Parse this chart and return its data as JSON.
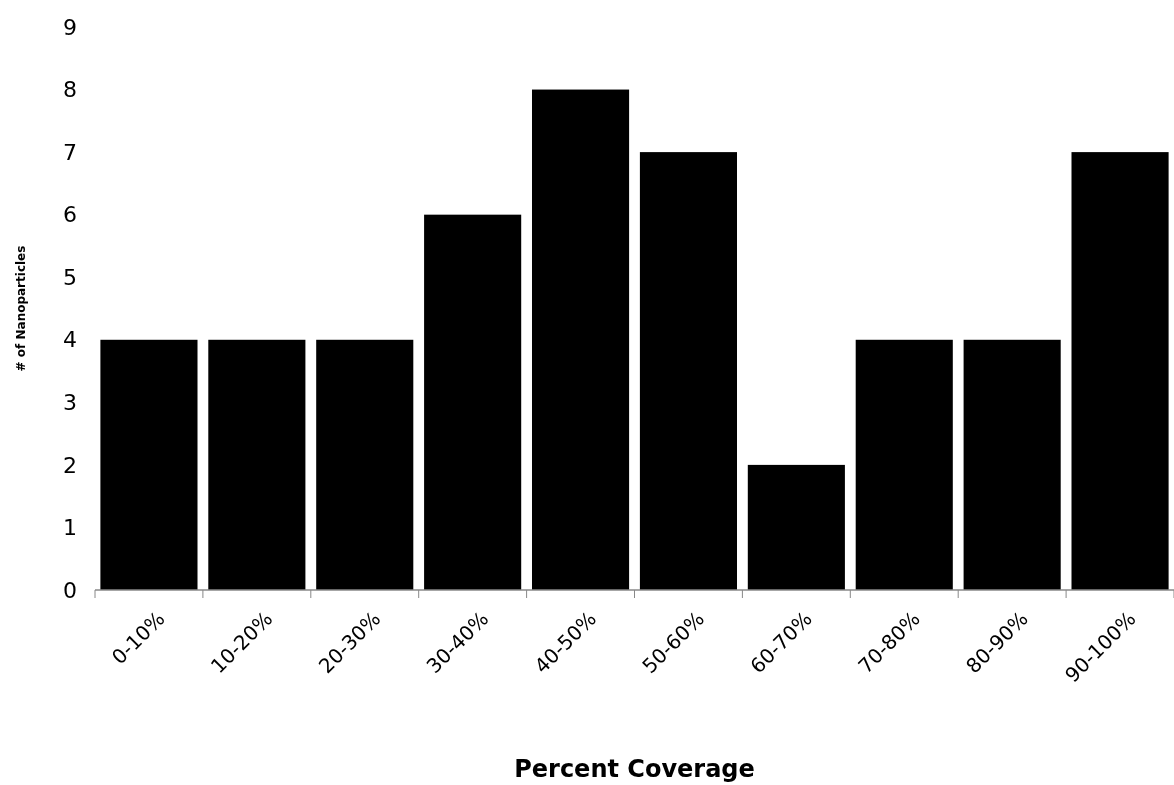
{
  "chart_data": {
    "type": "bar",
    "xlabel": "Percent Coverage",
    "ylabel": "# of Nanoparticles",
    "categories": [
      "0-10%",
      "10-20%",
      "20-30%",
      "30-40%",
      "40-50%",
      "50-60%",
      "60-70%",
      "70-80%",
      "80-90%",
      "90-100%"
    ],
    "values": [
      4,
      4,
      4,
      6,
      8,
      7,
      2,
      4,
      4,
      7
    ],
    "color": "#000000",
    "ylim": [
      0,
      9
    ],
    "yticks": [
      0,
      1,
      2,
      3,
      4,
      5,
      6,
      7,
      8,
      9
    ],
    "grid": false
  }
}
